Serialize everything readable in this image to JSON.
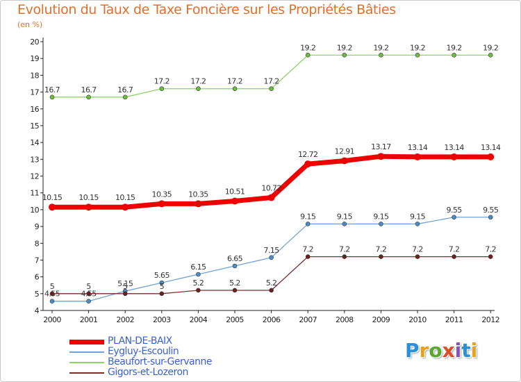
{
  "header": {
    "title": "Evolution du Taux de Taxe Foncière sur les Propriétés Bâties",
    "unit": "(en %)"
  },
  "logo": {
    "text": "Proxiti",
    "colors": [
      "#2a8fd6",
      "#e7a21b",
      "#5aa832",
      "#e04b2a",
      "#8a4fc1",
      "#2a8fd6",
      "#e7a21b"
    ]
  },
  "chart_data": {
    "type": "line",
    "title": "Evolution du Taux de Taxe Foncière sur les Propriétés Bâties",
    "ylabel": "(en %)",
    "xlabel": "",
    "x": [
      "2000",
      "2001",
      "2002",
      "2003",
      "2004",
      "2005",
      "2006",
      "2007",
      "2008",
      "2009",
      "2010",
      "2011",
      "2012"
    ],
    "ylim": [
      4,
      20
    ],
    "yticks": [
      "4",
      "5",
      "6",
      "7",
      "8",
      "9",
      "10",
      "11",
      "12",
      "13",
      "14",
      "15",
      "16",
      "17",
      "18",
      "19",
      "20"
    ],
    "grid": false,
    "legend_position": "bottom-left",
    "series": [
      {
        "name": "Beaufort-sur-Gervanne",
        "color": "#8fd16a",
        "marker": "#6abf3c",
        "width": 1.3,
        "values": [
          16.7,
          16.7,
          16.7,
          17.2,
          17.2,
          17.2,
          17.2,
          19.2,
          19.2,
          19.2,
          19.2,
          19.2,
          19.2
        ],
        "labels": [
          "16.7",
          "16.7",
          "16.7",
          "17.2",
          "17.2",
          "17.2",
          "17.2",
          "19.2",
          "19.2",
          "19.2",
          "19.2",
          "19.2",
          "19.2"
        ]
      },
      {
        "name": "Eygluy-Escoulin",
        "color": "#6fa3d4",
        "marker": "#4a8cc8",
        "width": 1.3,
        "values": [
          4.55,
          4.55,
          5.15,
          5.65,
          6.15,
          6.65,
          7.15,
          9.15,
          9.15,
          9.15,
          9.15,
          9.55,
          9.55
        ],
        "labels": [
          "4.55",
          "4.55",
          "5.15",
          "5.65",
          "6.15",
          "6.65",
          "7.15",
          "9.15",
          "9.15",
          "9.15",
          "9.15",
          "9.55",
          "9.55"
        ]
      },
      {
        "name": "Gigors-et-Lozeron",
        "color": "#7a2f2f",
        "marker": "#6b1f1f",
        "width": 1.3,
        "values": [
          5,
          5,
          5,
          5,
          5.2,
          5.2,
          5.2,
          7.2,
          7.2,
          7.2,
          7.2,
          7.2,
          7.2
        ],
        "labels": [
          "5",
          "5",
          "5",
          "5",
          "5.2",
          "5.2",
          "5.2",
          "7.2",
          "7.2",
          "7.2",
          "7.2",
          "7.2",
          "7.2"
        ]
      },
      {
        "name": "PLAN-DE-BAIX",
        "color": "#ee0000",
        "marker": "#ee0000",
        "width": 7,
        "values": [
          10.15,
          10.15,
          10.15,
          10.35,
          10.35,
          10.51,
          10.72,
          12.72,
          12.91,
          13.17,
          13.14,
          13.14,
          13.14
        ],
        "labels": [
          "10.15",
          "10.15",
          "10.15",
          "10.35",
          "10.35",
          "10.51",
          "10.72",
          "12.72",
          "12.91",
          "13.17",
          "13.14",
          "13.14",
          "13.14"
        ]
      }
    ]
  },
  "legend": {
    "items": [
      {
        "label": "PLAN-DE-BAIX",
        "color": "#ee0000",
        "width": 7
      },
      {
        "label": "Eygluy-Escoulin",
        "color": "#6fa3d4",
        "width": 1.5
      },
      {
        "label": "Beaufort-sur-Gervanne",
        "color": "#8fd16a",
        "width": 1.5
      },
      {
        "label": "Gigors-et-Lozeron",
        "color": "#7a2f2f",
        "width": 1.5
      }
    ]
  }
}
